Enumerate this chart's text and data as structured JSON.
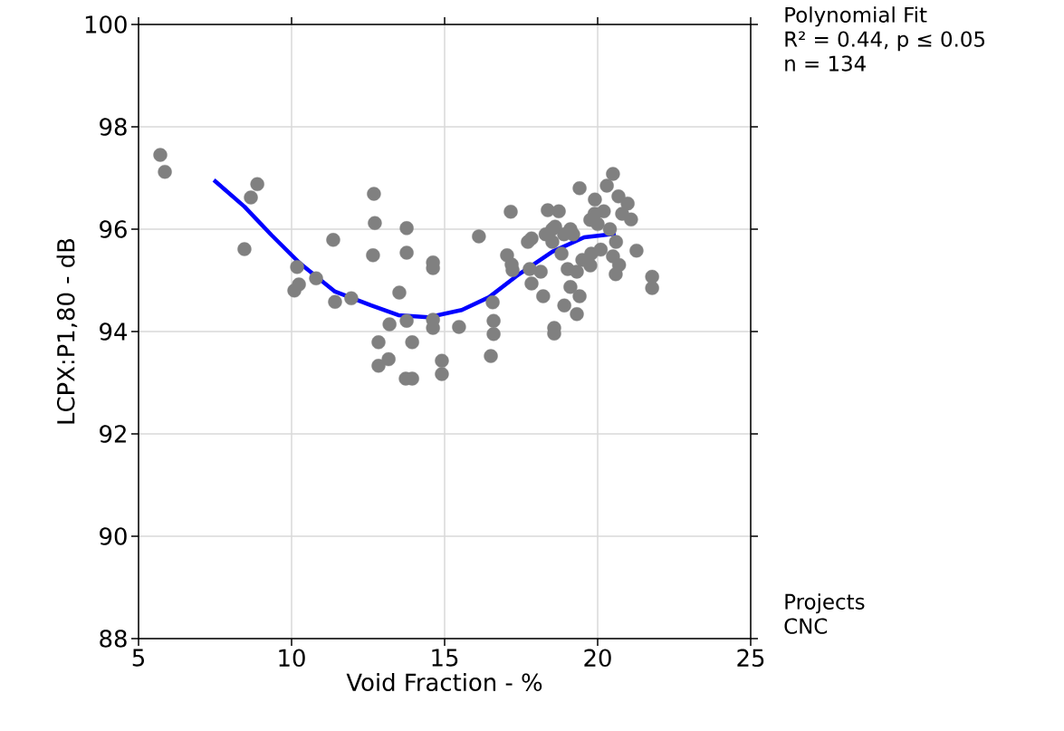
{
  "chart_data": {
    "type": "scatter",
    "xlabel": "Void Fraction - %",
    "ylabel": "LCPX:P1,80 - dB",
    "xlim": [
      5,
      25
    ],
    "ylim": [
      88,
      100
    ],
    "xticks": [
      5,
      10,
      15,
      20,
      25
    ],
    "yticks": [
      88,
      90,
      92,
      94,
      96,
      98,
      100
    ],
    "grid": true,
    "annotations": [
      "Polynomial Fit",
      "R² = 0.44, p ≤ 0.05",
      "n = 134",
      "Projects",
      "CNC"
    ],
    "series": [
      {
        "color": "#808080",
        "marker": "circle",
        "x": [
          5.71,
          5.86,
          8.88,
          8.67,
          8.46,
          10.18,
          10.24,
          10.09,
          10.8,
          11.36,
          11.42,
          11.95,
          12.69,
          12.72,
          12.66,
          13.52,
          12.84,
          12.84,
          13.2,
          13.17,
          13.76,
          13.76,
          13.76,
          13.94,
          13.73,
          13.94,
          14.62,
          14.62,
          14.62,
          14.62,
          14.91,
          14.91,
          15.47,
          16.12,
          16.57,
          16.6,
          16.6,
          16.51,
          17.16,
          17.04,
          17.19,
          17.22,
          18.58,
          18.58,
          17.84,
          17.72,
          18.37,
          18.73,
          18.52,
          19.11,
          19.2,
          19.41,
          19.91,
          20.3,
          20.5,
          20.68,
          20.98,
          21.09,
          19.76,
          20.2,
          19.79,
          19.76,
          20.5,
          20.59,
          21.27,
          21.78,
          21.78,
          17.78,
          17.84,
          18.22,
          18.14,
          18.82,
          19.02,
          19.32,
          19.11,
          19.41,
          18.91,
          19.32,
          18.52,
          18.61,
          20.0,
          20.4,
          20.8,
          20.6,
          19.5,
          18.9,
          20.1,
          20.7,
          19.9,
          18.3
        ],
        "values": [
          97.45,
          97.12,
          96.88,
          96.62,
          95.61,
          95.26,
          94.92,
          94.8,
          95.04,
          95.79,
          94.58,
          94.65,
          96.69,
          96.12,
          95.49,
          94.76,
          93.79,
          93.33,
          94.14,
          93.46,
          96.02,
          95.54,
          94.21,
          93.79,
          93.08,
          93.08,
          95.35,
          95.24,
          94.23,
          94.07,
          93.43,
          93.17,
          94.09,
          95.86,
          94.57,
          94.21,
          93.95,
          93.52,
          96.34,
          95.49,
          95.31,
          95.2,
          94.07,
          93.96,
          95.82,
          95.75,
          96.37,
          96.35,
          96.0,
          96.0,
          95.9,
          96.8,
          96.58,
          96.85,
          97.08,
          96.64,
          96.5,
          96.19,
          96.18,
          96.35,
          95.52,
          95.29,
          95.47,
          95.12,
          95.58,
          95.07,
          94.85,
          95.22,
          94.94,
          94.69,
          95.17,
          95.52,
          95.22,
          95.17,
          94.87,
          94.69,
          94.51,
          94.34,
          95.75,
          96.05,
          96.1,
          96.0,
          96.3,
          95.75,
          95.4,
          95.9,
          95.6,
          95.3,
          96.3,
          95.9
        ]
      },
      {
        "type": "line",
        "color": "#0000ff",
        "marker": "none",
        "line_style": "solid",
        "x": [
          7.46,
          8.46,
          9.35,
          10.24,
          11.42,
          12.6,
          13.49,
          14.47,
          15.56,
          16.45,
          17.34,
          18.52,
          19.56,
          20.59
        ],
        "values": [
          96.96,
          96.44,
          95.88,
          95.35,
          94.78,
          94.51,
          94.32,
          94.28,
          94.42,
          94.67,
          95.08,
          95.56,
          95.84,
          95.91
        ]
      }
    ]
  }
}
